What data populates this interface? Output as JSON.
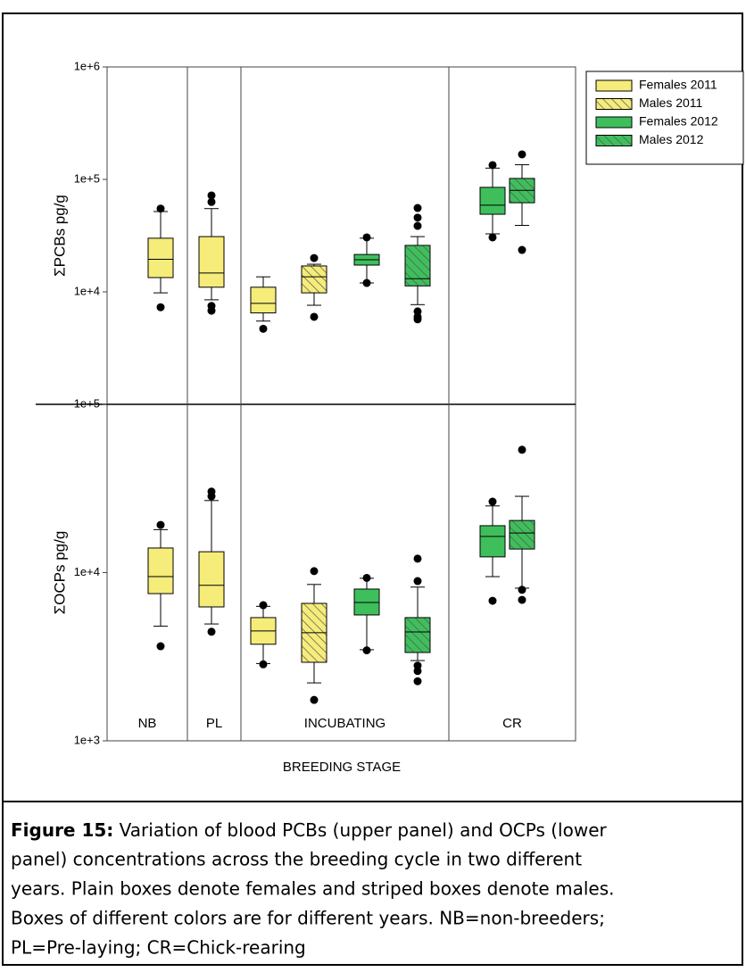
{
  "chart_data": {
    "type": "box",
    "xlabel": "BREEDING STAGE",
    "groups": [
      "NB",
      "PL",
      "INCUBATING",
      "CR"
    ],
    "series": [
      {
        "name": "Females 2011",
        "color": "#f5ec7a",
        "hatch": false
      },
      {
        "name": "Males 2011",
        "color": "#f5ec7a",
        "hatch": true
      },
      {
        "name": "Females 2012",
        "color": "#3fbf5c",
        "hatch": false
      },
      {
        "name": "Males 2012",
        "color": "#3fbf5c",
        "hatch": true
      }
    ],
    "legend": "upper right",
    "log_scale": true,
    "panels": [
      {
        "ylabel": "ΣPCBs pg/g",
        "ylim": [
          1000,
          1000000
        ],
        "yticks": [
          {
            "value": 1000000,
            "label": "1e+6"
          },
          {
            "value": 100000,
            "label": "1e+5"
          },
          {
            "value": 10000,
            "label": "1e+4"
          }
        ],
        "boxes": [
          {
            "group": 0,
            "series": 0,
            "min": 9800,
            "q1": 13400,
            "median": 19500,
            "q3": 30000,
            "max": 51800,
            "outliers": [
              55000,
              7300
            ]
          },
          {
            "group": 1,
            "series": 0,
            "min": 8500,
            "q1": 11000,
            "median": 14700,
            "q3": 31000,
            "max": 55000,
            "outliers": [
              72000,
              63000,
              7500,
              6800
            ]
          },
          {
            "group": 2,
            "series": 0,
            "min": 5500,
            "q1": 6500,
            "median": 7900,
            "q3": 11000,
            "max": 13600,
            "outliers": [
              4700
            ]
          },
          {
            "group": 2,
            "series": 1,
            "min": 7600,
            "q1": 9800,
            "median": 13600,
            "q3": 17000,
            "max": 17600,
            "outliers": [
              20000,
              6000
            ]
          },
          {
            "group": 2,
            "series": 2,
            "min": 12000,
            "q1": 17300,
            "median": 19300,
            "q3": 21500,
            "max": 30000,
            "outliers": [
              30500,
              12000
            ]
          },
          {
            "group": 2,
            "series": 3,
            "min": 7700,
            "q1": 11300,
            "median": 13100,
            "q3": 25900,
            "max": 31000,
            "outliers": [
              55700,
              45700,
              38600,
              6700,
              6000,
              5700
            ]
          },
          {
            "group": 3,
            "series": 2,
            "min": 32800,
            "q1": 49000,
            "median": 59000,
            "q3": 85000,
            "max": 126000,
            "outliers": [
              134000,
              30500
            ]
          },
          {
            "group": 3,
            "series": 3,
            "min": 39000,
            "q1": 62000,
            "median": 80000,
            "q3": 102000,
            "max": 135000,
            "outliers": [
              167000,
              23600
            ]
          }
        ]
      },
      {
        "ylabel": "ΣOCPs pg/g",
        "ylim": [
          1000,
          100000
        ],
        "yticks": [
          {
            "value": 100000,
            "label": "1e+5"
          },
          {
            "value": 10000,
            "label": "1e+4"
          },
          {
            "value": 1000,
            "label": "1e+3"
          }
        ],
        "boxes": [
          {
            "group": 0,
            "series": 0,
            "min": 4800,
            "q1": 7500,
            "median": 9460,
            "q3": 14000,
            "max": 18000,
            "outliers": [
              19200,
              3650
            ]
          },
          {
            "group": 1,
            "series": 0,
            "min": 4950,
            "q1": 6250,
            "median": 8400,
            "q3": 13300,
            "max": 26800,
            "outliers": [
              30300,
              28400,
              4450
            ]
          },
          {
            "group": 2,
            "series": 0,
            "min": 2880,
            "q1": 3750,
            "median": 4500,
            "q3": 5400,
            "max": 6300,
            "outliers": [
              6400,
              2850
            ]
          },
          {
            "group": 2,
            "series": 1,
            "min": 2210,
            "q1": 2930,
            "median": 4390,
            "q3": 6560,
            "max": 8500,
            "outliers": [
              10200,
              1750
            ]
          },
          {
            "group": 2,
            "series": 2,
            "min": 3480,
            "q1": 5600,
            "median": 6640,
            "q3": 7980,
            "max": 9250,
            "outliers": [
              9300,
              3450
            ]
          },
          {
            "group": 2,
            "series": 3,
            "min": 3000,
            "q1": 3350,
            "median": 4440,
            "q3": 5400,
            "max": 8200,
            "outliers": [
              12100,
              8900,
              2800,
              2600,
              2260
            ]
          },
          {
            "group": 3,
            "series": 2,
            "min": 9460,
            "q1": 12400,
            "median": 16400,
            "q3": 19000,
            "max": 24900,
            "outliers": [
              26400,
              6800
            ]
          },
          {
            "group": 3,
            "series": 3,
            "min": 8080,
            "q1": 13800,
            "median": 17200,
            "q3": 20400,
            "max": 28400,
            "outliers": [
              53700,
              7900,
              6880
            ]
          }
        ]
      }
    ]
  },
  "caption": {
    "label": "Figure 15:",
    "lines": [
      " Variation of blood PCBs (upper panel) and OCPs (lower",
      "panel) concentrations across the breeding cycle in two different",
      "years. Plain boxes denote females and striped boxes denote males.",
      "Boxes of different colors are for different years. NB=non-breeders;",
      "PL=Pre-laying; CR=Chick-rearing"
    ]
  }
}
